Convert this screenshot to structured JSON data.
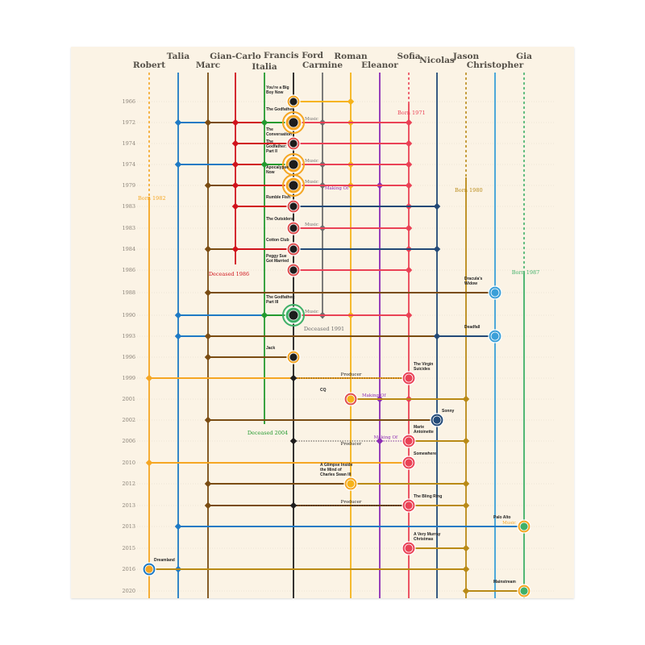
{
  "colors": {
    "background": "#fbf3e5",
    "grid": "#ded5c6",
    "name": "#555048",
    "year": "#8a8278"
  },
  "people": [
    {
      "id": "robert",
      "name": "Robert",
      "color": "#f5a623"
    },
    {
      "id": "talia",
      "name": "Talia",
      "color": "#1e7ac4"
    },
    {
      "id": "marc",
      "name": "Marc",
      "color": "#7a4c12"
    },
    {
      "id": "giancarlo",
      "name": "Gian-Carlo",
      "color": "#d0141c"
    },
    {
      "id": "italia",
      "name": "Italia",
      "color": "#249a30"
    },
    {
      "id": "francisford",
      "name": "Francis Ford",
      "color": "#1d1d1d"
    },
    {
      "id": "carmine",
      "name": "Carmine",
      "color": "#6d6d6d"
    },
    {
      "id": "roman",
      "name": "Roman",
      "color": "#f6b31a"
    },
    {
      "id": "eleanor",
      "name": "Eleanor",
      "color": "#8b2bb5"
    },
    {
      "id": "sofia",
      "name": "Sofia",
      "color": "#ea4256"
    },
    {
      "id": "nicolas",
      "name": "Nicolas",
      "color": "#234a77"
    },
    {
      "id": "jason",
      "name": "Jason",
      "color": "#b98a16"
    },
    {
      "id": "christopher",
      "name": "Christopher",
      "color": "#3a9fd8"
    },
    {
      "id": "gia",
      "name": "Gia",
      "color": "#3fb068"
    }
  ],
  "life_events": [
    {
      "person": "sofia",
      "text": "Born 1971"
    },
    {
      "person": "robert",
      "text": "Born 1982"
    },
    {
      "person": "jason",
      "text": "Born 1980"
    },
    {
      "person": "giancarlo",
      "text": "Deceased 1986"
    },
    {
      "person": "gia",
      "text": "Born 1987"
    },
    {
      "person": "carmine",
      "text": "Deceased 1991"
    },
    {
      "person": "italia",
      "text": "Deceased 2004"
    }
  ],
  "films": [
    {
      "year": "1966",
      "title": [
        "You're a Big",
        "Boy Now"
      ],
      "host": "francisford",
      "ring": "#f5a623",
      "members": [
        "francisford",
        "roman"
      ],
      "roles": []
    },
    {
      "year": "1972",
      "title": [
        "The Godfather"
      ],
      "host": "francisford",
      "ring": "#f5a623",
      "members": [
        "talia",
        "marc",
        "giancarlo",
        "italia",
        "francisford",
        "carmine",
        "roman",
        "sofia"
      ],
      "roles": [
        {
          "person": "carmine",
          "text": "Music"
        }
      ]
    },
    {
      "year": "1974",
      "title": [
        "The",
        "Conversation"
      ],
      "host": "francisford",
      "ring": "#e05050",
      "members": [
        "giancarlo",
        "francisford",
        "sofia"
      ],
      "roles": []
    },
    {
      "year": "1974",
      "title": [
        "The",
        "Godfather:",
        "Part II"
      ],
      "host": "francisford",
      "ring": "#f5a623",
      "members": [
        "talia",
        "giancarlo",
        "italia",
        "francisford",
        "carmine",
        "roman",
        "sofia"
      ],
      "roles": [
        {
          "person": "carmine",
          "text": "Music"
        }
      ]
    },
    {
      "year": "1979",
      "title": [
        "Apocalypse",
        "Now"
      ],
      "host": "francisford",
      "ring": "#f5a623",
      "members": [
        "marc",
        "giancarlo",
        "francisford",
        "carmine",
        "roman",
        "eleanor",
        "sofia"
      ],
      "roles": [
        {
          "person": "carmine",
          "text": "Music"
        },
        {
          "person": "eleanor",
          "text": "Making Of"
        }
      ]
    },
    {
      "year": "1983",
      "title": [
        "Rumble Fish"
      ],
      "host": "francisford",
      "ring": "#e05050",
      "members": [
        "giancarlo",
        "francisford",
        "sofia",
        "nicolas"
      ],
      "roles": []
    },
    {
      "year": "1983",
      "title": [
        "The Outsiders"
      ],
      "host": "francisford",
      "ring": "#e05050",
      "members": [
        "francisford",
        "carmine",
        "sofia"
      ],
      "roles": [
        {
          "person": "carmine",
          "text": "Music"
        }
      ]
    },
    {
      "year": "1984",
      "title": [
        "Cotton Club"
      ],
      "host": "francisford",
      "ring": "#e05050",
      "members": [
        "marc",
        "giancarlo",
        "francisford",
        "sofia",
        "nicolas"
      ],
      "roles": []
    },
    {
      "year": "1986",
      "title": [
        "Peggy Sue",
        "Got Married"
      ],
      "host": "francisford",
      "ring": "#e05050",
      "members": [
        "francisford",
        "sofia"
      ],
      "roles": []
    },
    {
      "year": "1988",
      "title": [
        "Dracula's",
        "Widow"
      ],
      "host": "christopher",
      "ring": "#3a9fd8",
      "members": [
        "marc",
        "christopher"
      ],
      "roles": []
    },
    {
      "year": "1990",
      "title": [
        "The Godfather:",
        "Part III"
      ],
      "host": "francisford",
      "ring": "#3fb068",
      "members": [
        "talia",
        "italia",
        "francisford",
        "carmine",
        "roman",
        "sofia"
      ],
      "roles": [
        {
          "person": "carmine",
          "text": "Music"
        }
      ]
    },
    {
      "year": "1993",
      "title": [
        "Deadfall"
      ],
      "host": "christopher",
      "ring": "#3a9fd8",
      "members": [
        "talia",
        "marc",
        "nicolas",
        "christopher"
      ],
      "roles": []
    },
    {
      "year": "1996",
      "title": [
        "Jack"
      ],
      "host": "francisford",
      "ring": "#f5a623",
      "members": [
        "marc",
        "francisford"
      ],
      "roles": []
    },
    {
      "year": "1999",
      "title": [
        "The Virgin",
        "Suicides"
      ],
      "host": "sofia",
      "ring": "#ea4256",
      "members": [
        "robert",
        "francisford",
        "sofia"
      ],
      "roles": [
        {
          "person": "francisford",
          "text": "Producer"
        }
      ]
    },
    {
      "year": "2001",
      "title": [
        "CQ"
      ],
      "host": "roman",
      "ring": "#e05050",
      "members": [
        "roman",
        "eleanor",
        "sofia",
        "jason"
      ],
      "roles": [
        {
          "person": "eleanor",
          "text": "Making Of"
        }
      ]
    },
    {
      "year": "2002",
      "title": [
        "Sonny"
      ],
      "host": "nicolas",
      "ring": "#234a77",
      "members": [
        "marc",
        "nicolas"
      ],
      "roles": []
    },
    {
      "year": "2006",
      "title": [
        "Marie",
        "Antoinette"
      ],
      "host": "sofia",
      "ring": "#ea4256",
      "members": [
        "francisford",
        "eleanor",
        "sofia",
        "jason"
      ],
      "roles": [
        {
          "person": "eleanor",
          "text": "Making Of"
        },
        {
          "person": "francisford",
          "text": "Producer"
        }
      ]
    },
    {
      "year": "2010",
      "title": [
        "Somewhere"
      ],
      "host": "sofia",
      "ring": "#ea4256",
      "members": [
        "robert",
        "sofia"
      ],
      "roles": []
    },
    {
      "year": "2012",
      "title": [
        "A Glimpse Inside",
        "the Mind of",
        "Charles Swan III"
      ],
      "host": "roman",
      "ring": "#f5a623",
      "members": [
        "marc",
        "roman",
        "jason"
      ],
      "roles": []
    },
    {
      "year": "2013",
      "title": [
        "The Bling Ring"
      ],
      "host": "sofia",
      "ring": "#ea4256",
      "members": [
        "marc",
        "francisford",
        "sofia",
        "jason"
      ],
      "roles": [
        {
          "person": "francisford",
          "text": "Producer"
        }
      ]
    },
    {
      "year": "2013",
      "title": [
        "Palo Alto"
      ],
      "host": "gia",
      "ring": "#f5a623",
      "members": [
        "talia",
        "gia"
      ],
      "roles": [
        {
          "person": "robert",
          "text": "Music"
        }
      ]
    },
    {
      "year": "2015",
      "title": [
        "A Very Murray",
        "Christmas"
      ],
      "host": "sofia",
      "ring": "#ea4256",
      "members": [
        "sofia",
        "jason"
      ],
      "roles": []
    },
    {
      "year": "2016",
      "title": [
        "Dreamland"
      ],
      "host": "robert",
      "ring": "#1e7ac4",
      "members": [
        "robert",
        "talia",
        "jason"
      ],
      "roles": []
    },
    {
      "year": "2020",
      "title": [
        "Mainstream"
      ],
      "host": "gia",
      "ring": "#f5a623",
      "members": [
        "jason",
        "gia"
      ],
      "roles": []
    }
  ]
}
